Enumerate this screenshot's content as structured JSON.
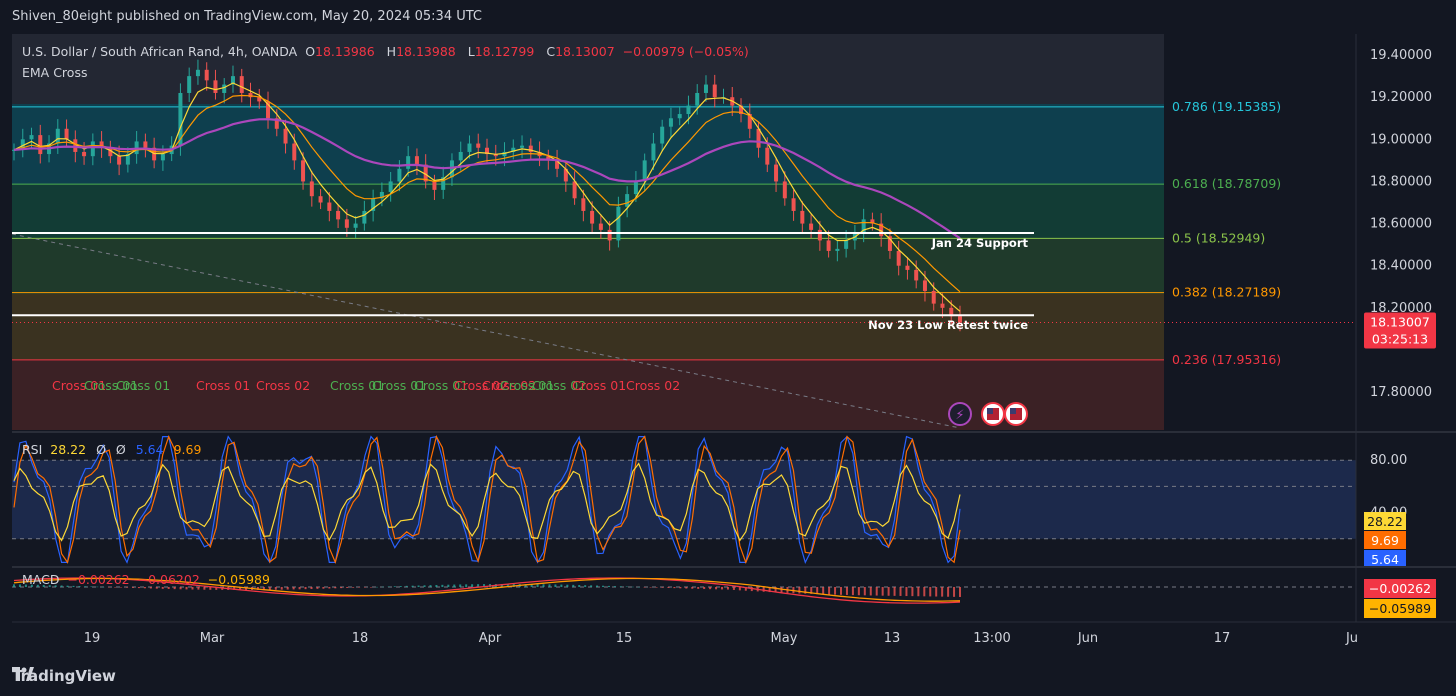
{
  "header": {
    "publisher_text": "Shiven_80eight published on TradingView.com, May 20, 2024 05:34 UTC"
  },
  "footer": {
    "brand": "TradingView"
  },
  "chart_data": [
    {
      "type": "candlestick",
      "symbol_line": "U.S. Dollar / South African Rand, 4h, OANDA",
      "ohlc": {
        "o_label": "O",
        "o": "18.13986",
        "h_label": "H",
        "h": "18.13988",
        "l_label": "L",
        "l": "18.12799",
        "c_label": "C",
        "c": "18.13007",
        "change": "−0.00979 (−0.05%)"
      },
      "indicator_label": "EMA Cross",
      "ylim": [
        17.62,
        19.5
      ],
      "y_ticks": [
        "19.40000",
        "19.20000",
        "19.00000",
        "18.80000",
        "18.60000",
        "18.40000",
        "18.20000",
        "17.80000"
      ],
      "y_tick_values": [
        19.4,
        19.2,
        19.0,
        18.8,
        18.6,
        18.4,
        18.2,
        17.8
      ],
      "last_price": "18.13007",
      "countdown": "03:25:13",
      "last_price_value": 18.13007,
      "fib_levels": [
        {
          "label": "0.786 (19.15385)",
          "value": 19.15385,
          "color": "#26c6da"
        },
        {
          "label": "0.618 (18.78709)",
          "value": 18.78709,
          "color": "#4caf50"
        },
        {
          "label": "0.5 (18.52949)",
          "value": 18.52949,
          "color": "#8bc34a"
        },
        {
          "label": "0.382 (18.27189)",
          "value": 18.27189,
          "color": "#ff9800"
        },
        {
          "label": "0.236 (17.95316)",
          "value": 17.95316,
          "color": "#f23645"
        }
      ],
      "support_lines": [
        {
          "label": "Jan 24 Support",
          "value": 18.555
        },
        {
          "label": "Nov 23 Low Retest twice",
          "value": 18.165
        }
      ],
      "close_series": [
        18.95,
        19.0,
        19.02,
        18.93,
        18.98,
        19.05,
        19.0,
        18.94,
        18.92,
        18.99,
        18.96,
        18.92,
        18.88,
        18.93,
        18.99,
        18.96,
        18.9,
        18.93,
        18.97,
        19.22,
        19.3,
        19.33,
        19.28,
        19.22,
        19.26,
        19.3,
        19.22,
        19.2,
        19.18,
        19.1,
        19.05,
        18.98,
        18.9,
        18.8,
        18.73,
        18.7,
        18.66,
        18.62,
        18.58,
        18.6,
        18.66,
        18.72,
        18.75,
        18.8,
        18.86,
        18.92,
        18.88,
        18.8,
        18.76,
        18.82,
        18.9,
        18.94,
        18.98,
        18.96,
        18.93,
        18.92,
        18.94,
        18.96,
        18.97,
        18.94,
        18.92,
        18.9,
        18.86,
        18.8,
        18.72,
        18.66,
        18.6,
        18.57,
        18.52,
        18.68,
        18.74,
        18.8,
        18.9,
        18.98,
        19.06,
        19.1,
        19.12,
        19.16,
        19.22,
        19.26,
        19.2,
        19.2,
        19.16,
        19.12,
        19.05,
        18.96,
        18.88,
        18.8,
        18.72,
        18.66,
        18.6,
        18.57,
        18.52,
        18.47,
        18.48,
        18.52,
        18.56,
        18.62,
        18.6,
        18.54,
        18.47,
        18.4,
        18.38,
        18.33,
        18.28,
        18.22,
        18.2,
        18.16,
        18.13
      ],
      "cross_labels": [
        {
          "text": "Cross 01",
          "color": "#f23645"
        },
        {
          "text": "Cross 01",
          "color": "#4caf50"
        },
        {
          "text": "Cross 01",
          "color": "#4caf50"
        },
        {
          "text": "Cross 01",
          "color": "#f23645"
        },
        {
          "text": "Cross 02",
          "color": "#f23645"
        },
        {
          "text": "Cross 01",
          "color": "#4caf50"
        },
        {
          "text": "Cross 01",
          "color": "#4caf50"
        },
        {
          "text": "Cross 01",
          "color": "#4caf50"
        },
        {
          "text": "Cross 02",
          "color": "#f23645"
        },
        {
          "text": "Cross 02",
          "color": "#f23645"
        },
        {
          "text": "Cross 01",
          "color": "#4caf50"
        },
        {
          "text": "Cross 02",
          "color": "#4caf50"
        },
        {
          "text": "Cross 01",
          "color": "#f23645"
        },
        {
          "text": "Cross 02",
          "color": "#f23645"
        }
      ]
    },
    {
      "type": "line",
      "name_label": "RSI",
      "values_text": [
        "28.22",
        "Ø",
        "Ø",
        "5.64",
        "9.69"
      ],
      "ylim": [
        0,
        100
      ],
      "y_ticks": [
        "80.00",
        "40.00"
      ],
      "y_tick_values": [
        80,
        40
      ],
      "band": [
        20,
        80
      ],
      "badges": [
        {
          "text": "28.22",
          "bg": "#fdd835",
          "fg": "#131722",
          "value": 28.22
        },
        {
          "text": "9.69",
          "bg": "#ff6d00",
          "fg": "#ffffff",
          "value": 9.69
        },
        {
          "text": "5.64",
          "bg": "#2962ff",
          "fg": "#ffffff",
          "value": 5.64
        }
      ]
    },
    {
      "type": "line",
      "name_label": "MACD",
      "values_text": [
        "−0.00262",
        "−0.06202",
        "−0.05989"
      ],
      "badges": [
        {
          "text": "−0.00262",
          "bg": "#f23645",
          "fg": "#ffffff"
        },
        {
          "text": "−0.05989",
          "bg": "#ffb300",
          "fg": "#131722"
        }
      ]
    }
  ],
  "x_axis_labels": [
    "19",
    "Mar",
    "18",
    "Apr",
    "15",
    "May",
    "13",
    "13:00",
    "Jun",
    "17",
    "Ju"
  ],
  "colors": {
    "background": "#131722",
    "ema_fast": "#fdd835",
    "ema_slow": "#ff9800",
    "ema_long": "#ab47bc",
    "up": "#26a69a",
    "down": "#ef5350",
    "rsi": "#fdd835",
    "stoch_k": "#2962ff",
    "stoch_d": "#ff6d00"
  }
}
